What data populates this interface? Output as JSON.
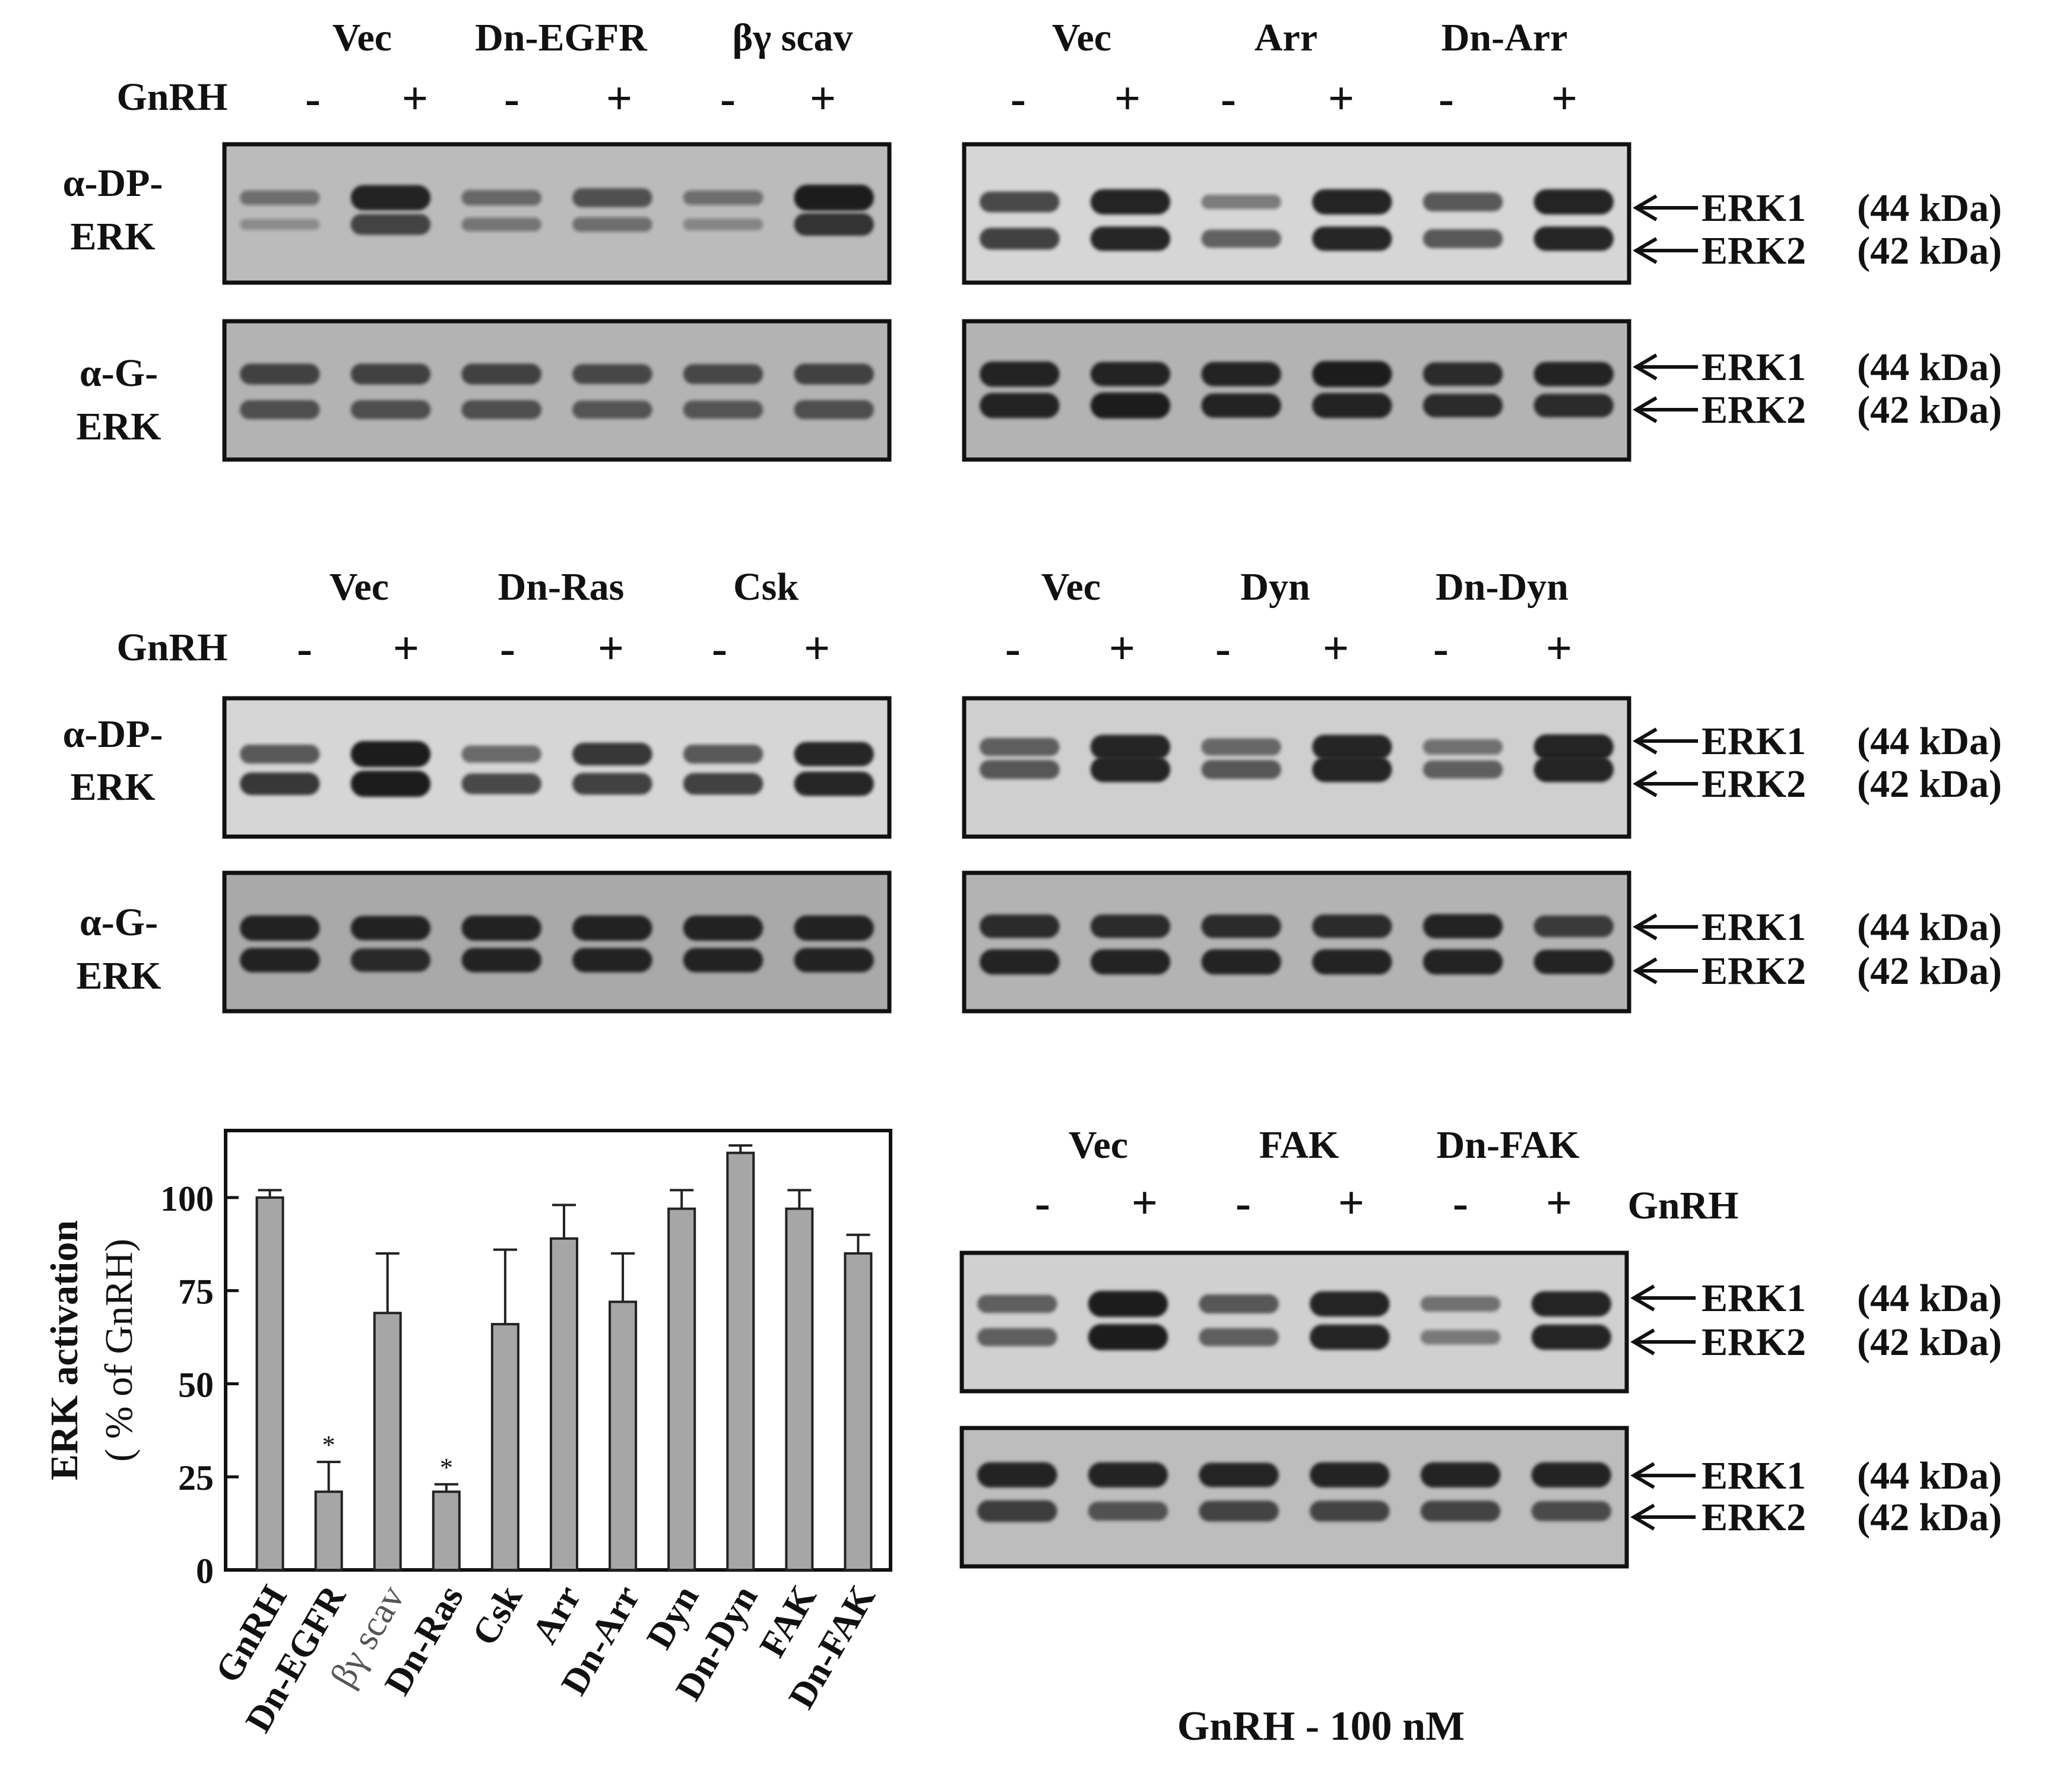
{
  "colors": {
    "panel_border": "#111111",
    "band": "#1a1a1a",
    "bar_fill": "#a6a6a6",
    "text": "#111111"
  },
  "blots": [
    {
      "id": "blot1",
      "groups": [
        "Vec",
        "Dn-EGFR",
        "βγ scav"
      ],
      "gnrh_label": "GnRH",
      "treat_signs": [
        "-",
        "+",
        "-",
        "+",
        "-",
        "+"
      ],
      "top": {
        "label_line1": "α-DP-",
        "label_line2": "ERK",
        "fill": "#bbbbbb",
        "i1": [
          0.35,
          0.95,
          0.4,
          0.6,
          0.35,
          1.0
        ],
        "i2": [
          0.15,
          0.7,
          0.3,
          0.35,
          0.2,
          0.8
        ]
      },
      "bottom": {
        "label_line1": "α-G-",
        "label_line2": "ERK",
        "fill": "#b3b3b3",
        "i1": [
          0.7,
          0.7,
          0.7,
          0.65,
          0.65,
          0.7
        ],
        "i2": [
          0.6,
          0.6,
          0.6,
          0.55,
          0.55,
          0.6
        ]
      }
    },
    {
      "id": "blot2",
      "groups": [
        "Vec",
        "Arr",
        "Dn-Arr"
      ],
      "gnrh_label": "",
      "treat_signs": [
        "-",
        "+",
        "-",
        "+",
        "-",
        "+"
      ],
      "top": {
        "fill": "#d6d6d6",
        "i1": [
          0.7,
          0.95,
          0.35,
          0.95,
          0.6,
          0.95
        ],
        "i2": [
          0.75,
          0.9,
          0.55,
          0.9,
          0.6,
          0.9
        ]
      },
      "bottom": {
        "fill": "#b3b3b3",
        "i1": [
          0.95,
          0.9,
          0.9,
          1.0,
          0.85,
          0.9
        ],
        "i2": [
          0.95,
          1.0,
          0.9,
          0.95,
          0.85,
          0.85
        ]
      },
      "erk_labels": [
        [
          "ERK1",
          "(44 kDa)"
        ],
        [
          "ERK2",
          "(42 kDa)"
        ],
        [
          "ERK1",
          "(44 kDa)"
        ],
        [
          "ERK2",
          "(42 kDa)"
        ]
      ]
    },
    {
      "id": "blot3",
      "groups": [
        "Vec",
        "Dn-Ras",
        "Csk"
      ],
      "gnrh_label": "GnRH",
      "treat_signs": [
        "-",
        "+",
        "-",
        "+",
        "-",
        "+"
      ],
      "top": {
        "label_line1": "α-DP-",
        "label_line2": "ERK",
        "fill": "#d6d6d6",
        "i1": [
          0.6,
          1.0,
          0.5,
          0.8,
          0.6,
          0.9
        ],
        "i2": [
          0.8,
          1.0,
          0.7,
          0.75,
          0.75,
          0.9
        ]
      },
      "bottom": {
        "label_line1": "α-G-",
        "label_line2": "ERK",
        "fill": "#a9a9a9",
        "i1": [
          0.95,
          0.9,
          0.95,
          0.95,
          0.95,
          0.95
        ],
        "i2": [
          0.9,
          0.85,
          0.9,
          0.9,
          0.9,
          0.9
        ]
      }
    },
    {
      "id": "blot4",
      "groups": [
        "Vec",
        "Dyn",
        "Dn-Dyn"
      ],
      "gnrh_label": "",
      "treat_signs": [
        "-",
        "+",
        "-",
        "+",
        "-",
        "+"
      ],
      "top": {
        "fill": "#cfcfcf",
        "i1": [
          0.55,
          0.9,
          0.5,
          0.9,
          0.4,
          0.95
        ],
        "i2": [
          0.6,
          0.95,
          0.6,
          0.95,
          0.55,
          0.95
        ]
      },
      "bottom": {
        "fill": "#b3b3b3",
        "i1": [
          0.85,
          0.85,
          0.85,
          0.85,
          0.9,
          0.75
        ],
        "i2": [
          0.95,
          0.95,
          0.95,
          0.95,
          0.95,
          0.9
        ]
      },
      "erk_labels": [
        [
          "ERK1",
          "(44 kDa)"
        ],
        [
          "ERK2",
          "(42 kDa)"
        ],
        [
          "ERK1",
          "(44 kDa)"
        ],
        [
          "ERK2",
          "(42 kDa)"
        ]
      ]
    },
    {
      "id": "blot5",
      "groups": [
        "Vec",
        "FAK",
        "Dn-FAK"
      ],
      "gnrh_label": "GnRH",
      "treat_signs": [
        "-",
        "+",
        "-",
        "+",
        "-",
        "+"
      ],
      "top": {
        "fill": "#d0d0d0",
        "i1": [
          0.55,
          1.0,
          0.6,
          0.95,
          0.4,
          0.95
        ],
        "i2": [
          0.55,
          1.0,
          0.55,
          0.95,
          0.35,
          0.95
        ]
      },
      "bottom": {
        "fill": "#bdbdbd",
        "i1": [
          0.95,
          0.95,
          0.9,
          0.95,
          0.95,
          0.95
        ],
        "i2": [
          0.75,
          0.6,
          0.7,
          0.7,
          0.7,
          0.65
        ]
      },
      "erk_labels": [
        [
          "ERK1",
          "(44 kDa)"
        ],
        [
          "ERK2",
          "(42 kDa)"
        ],
        [
          "ERK1",
          "(44 kDa)"
        ],
        [
          "ERK2",
          "(42 kDa)"
        ]
      ]
    }
  ],
  "footer": "GnRH - 100 nM",
  "chart_data": {
    "type": "bar",
    "categories": [
      "GnRH",
      "Dn-EGFR",
      "βγ scav",
      "Dn-Ras",
      "Csk",
      "Arr",
      "Dn-Arr",
      "Dyn",
      "Dn-Dyn",
      "FAK",
      "Dn-FAK"
    ],
    "values": [
      100,
      21,
      69,
      21,
      66,
      89,
      72,
      97,
      112,
      97,
      85
    ],
    "errors": [
      2,
      8,
      16,
      2,
      20,
      9,
      13,
      5,
      2,
      5,
      5
    ],
    "significant": [
      false,
      true,
      false,
      true,
      false,
      false,
      false,
      false,
      false,
      false,
      false
    ],
    "significance_mark": "*",
    "ylabel_line1": "ERK activation",
    "ylabel_line2": "( % of GnRH)",
    "yticks": [
      "0",
      "25",
      "50",
      "75",
      "100"
    ],
    "ylim": [
      0,
      118
    ],
    "grid": false
  }
}
